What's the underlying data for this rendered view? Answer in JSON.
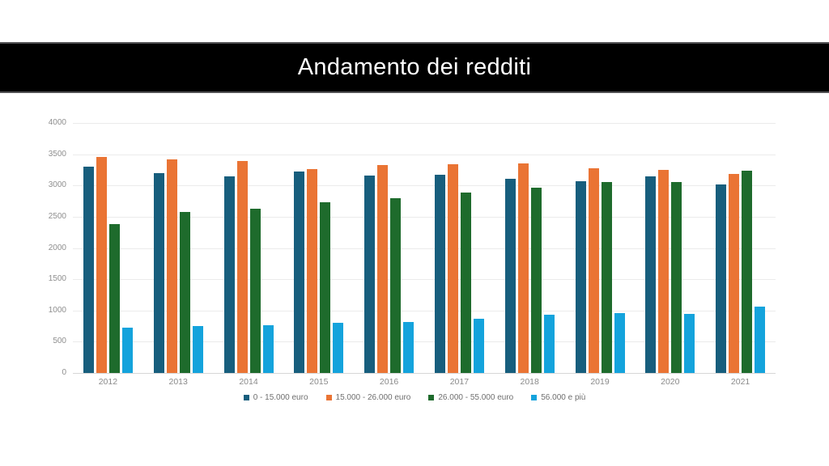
{
  "header": {
    "title": "Andamento dei redditi"
  },
  "colors": {
    "banner_background": "#000000",
    "banner_text": "#ffffff",
    "series_blue": "#175E7D",
    "series_orange": "#EA7434",
    "series_green": "#1E6B2C",
    "series_lightblue": "#14A3DC",
    "gridline": "#ebebeb",
    "axis_text": "#8e8e8e"
  },
  "chart_data": {
    "type": "bar",
    "title": "Andamento dei redditi",
    "categories": [
      "2012",
      "2013",
      "2014",
      "2015",
      "2016",
      "2017",
      "2018",
      "2019",
      "2020",
      "2021"
    ],
    "series": [
      {
        "name": "0 - 15.000 euro",
        "color": "#175E7D",
        "values": [
          3300,
          3195,
          3145,
          3220,
          3160,
          3170,
          3105,
          3065,
          3145,
          3015
        ]
      },
      {
        "name": "15.000 - 26.000 euro",
        "color": "#EA7434",
        "values": [
          3460,
          3420,
          3390,
          3260,
          3330,
          3340,
          3350,
          3275,
          3250,
          3185
        ]
      },
      {
        "name": "26.000 - 55.000 euro",
        "color": "#1E6B2C",
        "values": [
          2380,
          2575,
          2625,
          2730,
          2795,
          2885,
          2965,
          3055,
          3055,
          3235
        ]
      },
      {
        "name": "56.000 e più",
        "color": "#14A3DC",
        "values": [
          730,
          750,
          765,
          800,
          815,
          865,
          930,
          955,
          945,
          1060
        ]
      }
    ],
    "xlabel": "",
    "ylabel": "",
    "ylim": [
      0,
      4000
    ],
    "yticks": [
      0,
      500,
      1000,
      1500,
      2000,
      2500,
      3000,
      3500,
      4000
    ],
    "grid": true,
    "legend_position": "bottom"
  }
}
